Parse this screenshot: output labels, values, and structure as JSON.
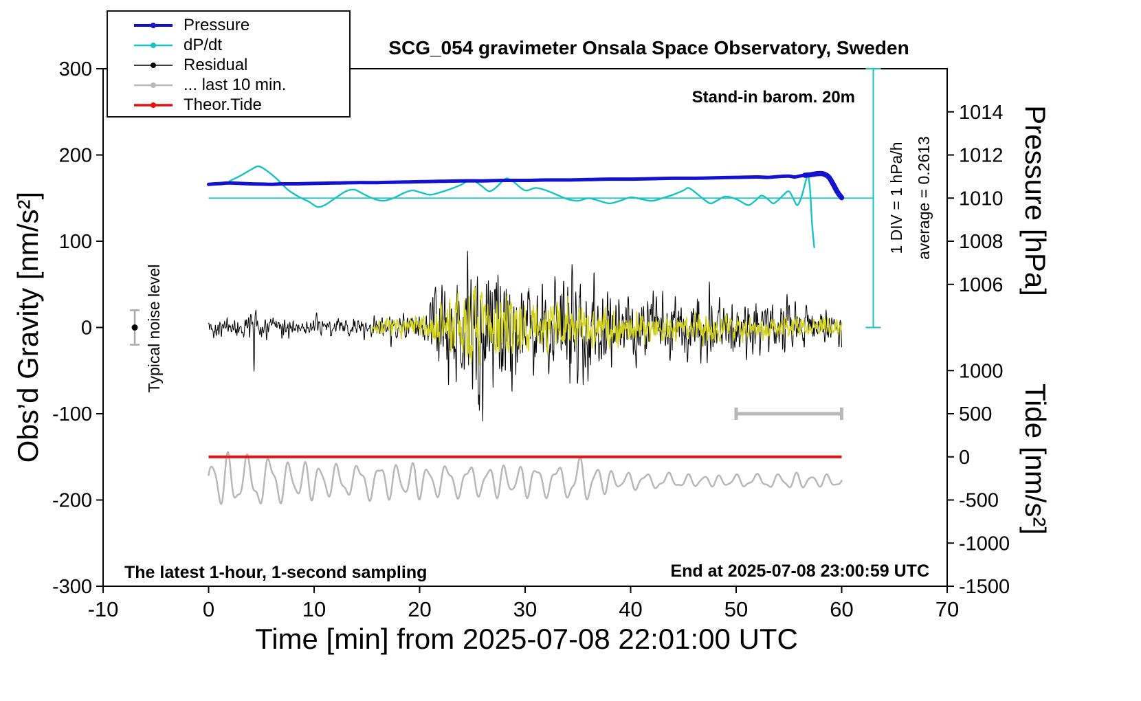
{
  "annotations": {
    "barom": "Stand-in barom. 20m",
    "div_scale": "1 DIV = 1 hPa/h",
    "average": "average = 0.2613",
    "noise": "Typical noise level",
    "sampling": "The latest 1-hour, 1-second sampling",
    "end_time": "End at 2025-07-08 23:00:59 UTC"
  },
  "legend": [
    {
      "label": "Pressure",
      "color": "#1212d0",
      "lw": 4
    },
    {
      "label": "dP/dt",
      "color": "#17c3c3",
      "lw": 2.5
    },
    {
      "label": "Residual",
      "color": "#000000",
      "lw": 1.5
    },
    {
      "label": "... last 10 min.",
      "color": "#b8b8b8",
      "lw": 2.5
    },
    {
      "label": "Theor.Tide",
      "color": "#e81010",
      "lw": 3.5
    }
  ],
  "chart_data": {
    "type": "line",
    "title": "SCG_054 gravimeter Onsala Space Observatory, Sweden",
    "x_axis": {
      "label": "Time [min] from 2025-07-08 22:01:00 UTC",
      "min": -10,
      "max": 70,
      "ticks": [
        -10,
        0,
        10,
        20,
        30,
        40,
        50,
        60,
        70
      ]
    },
    "y_left": {
      "label": "Obs’d Gravity [nm/s²]",
      "min": -300,
      "max": 300,
      "ticks": [
        -300,
        -200,
        -100,
        0,
        100,
        200,
        300
      ]
    },
    "y_right_pressure": {
      "label": "Pressure [hPa]",
      "ticks": [
        1006,
        1008,
        1010,
        1012,
        1014
      ],
      "map": {
        "ref_value": 1010,
        "ref_gravity": 150,
        "gravity_per_unit": 25
      }
    },
    "y_right_tide": {
      "label": "Tide [nm/s²]",
      "ticks": [
        -1500,
        -1000,
        -500,
        0,
        500,
        1000
      ],
      "map": {
        "ref_value": 0,
        "ref_gravity": -150,
        "gravity_per_unit": 0.1
      }
    },
    "series": {
      "pressure": {
        "name": "Pressure",
        "color": "#1212d0",
        "unit": "hPa",
        "points": [
          [
            0,
            1010.64
          ],
          [
            1,
            1010.67
          ],
          [
            2,
            1010.7
          ],
          [
            3,
            1010.68
          ],
          [
            4,
            1010.66
          ],
          [
            5,
            1010.65
          ],
          [
            6,
            1010.64
          ],
          [
            7,
            1010.66
          ],
          [
            8,
            1010.66
          ],
          [
            9,
            1010.67
          ],
          [
            10,
            1010.68
          ],
          [
            12,
            1010.7
          ],
          [
            14,
            1010.72
          ],
          [
            16,
            1010.72
          ],
          [
            18,
            1010.74
          ],
          [
            20,
            1010.76
          ],
          [
            22,
            1010.78
          ],
          [
            24,
            1010.8
          ],
          [
            26,
            1010.8
          ],
          [
            28,
            1010.82
          ],
          [
            30,
            1010.82
          ],
          [
            32,
            1010.84
          ],
          [
            34,
            1010.84
          ],
          [
            36,
            1010.86
          ],
          [
            38,
            1010.88
          ],
          [
            40,
            1010.88
          ],
          [
            42,
            1010.9
          ],
          [
            44,
            1010.92
          ],
          [
            46,
            1010.92
          ],
          [
            48,
            1010.94
          ],
          [
            50,
            1010.96
          ],
          [
            52,
            1010.98
          ],
          [
            53,
            1010.96
          ],
          [
            54,
            1011.0
          ],
          [
            55,
            1011.02
          ],
          [
            55.5,
            1010.98
          ],
          [
            56,
            1011.02
          ],
          [
            56.5,
            1011.06
          ],
          [
            57,
            1011.08
          ],
          [
            57.5,
            1011.12
          ],
          [
            58,
            1011.14
          ],
          [
            58.4,
            1011.1
          ],
          [
            58.8,
            1010.96
          ],
          [
            59.2,
            1010.64
          ],
          [
            59.6,
            1010.28
          ],
          [
            60,
            1010.02
          ]
        ]
      },
      "dpdt": {
        "name": "dP/dt",
        "color": "#17c3c3",
        "unit": "hPa/h",
        "average": 0.2613,
        "map": {
          "ref_value": 0.2613,
          "ref_gravity": 150,
          "gravity_per_unit": 100
        },
        "points": [
          [
            2,
            0.46
          ],
          [
            3,
            0.52
          ],
          [
            4,
            0.59
          ],
          [
            4.7,
            0.63
          ],
          [
            5.5,
            0.58
          ],
          [
            6.5,
            0.48
          ],
          [
            7.5,
            0.36
          ],
          [
            8.5,
            0.28
          ],
          [
            9.5,
            0.22
          ],
          [
            10.3,
            0.16
          ],
          [
            11,
            0.18
          ],
          [
            12,
            0.26
          ],
          [
            13,
            0.34
          ],
          [
            13.8,
            0.36
          ],
          [
            14.5,
            0.32
          ],
          [
            15.5,
            0.26
          ],
          [
            16.5,
            0.23
          ],
          [
            17.5,
            0.26
          ],
          [
            18.5,
            0.32
          ],
          [
            19.3,
            0.35
          ],
          [
            20,
            0.33
          ],
          [
            21,
            0.3
          ],
          [
            22,
            0.33
          ],
          [
            23,
            0.37
          ],
          [
            24,
            0.42
          ],
          [
            24.7,
            0.47
          ],
          [
            25.3,
            0.45
          ],
          [
            26,
            0.39
          ],
          [
            26.6,
            0.34
          ],
          [
            27.2,
            0.38
          ],
          [
            27.8,
            0.45
          ],
          [
            28.3,
            0.49
          ],
          [
            29,
            0.44
          ],
          [
            30,
            0.35
          ],
          [
            31,
            0.38
          ],
          [
            32,
            0.35
          ],
          [
            33,
            0.3
          ],
          [
            34,
            0.25
          ],
          [
            35,
            0.23
          ],
          [
            36,
            0.26
          ],
          [
            37,
            0.23
          ],
          [
            38,
            0.2
          ],
          [
            39,
            0.23
          ],
          [
            40,
            0.27
          ],
          [
            41,
            0.25
          ],
          [
            42,
            0.23
          ],
          [
            43,
            0.26
          ],
          [
            44,
            0.3
          ],
          [
            45,
            0.35
          ],
          [
            45.5,
            0.38
          ],
          [
            46.2,
            0.32
          ],
          [
            47,
            0.24
          ],
          [
            47.6,
            0.2
          ],
          [
            48.3,
            0.24
          ],
          [
            49,
            0.28
          ],
          [
            50,
            0.25
          ],
          [
            50.6,
            0.21
          ],
          [
            51.2,
            0.18
          ],
          [
            51.8,
            0.23
          ],
          [
            52.4,
            0.29
          ],
          [
            53,
            0.25
          ],
          [
            53.5,
            0.2
          ],
          [
            54,
            0.24
          ],
          [
            54.5,
            0.3
          ],
          [
            55,
            0.34
          ],
          [
            55.4,
            0.26
          ],
          [
            55.8,
            0.18
          ],
          [
            56.2,
            0.28
          ],
          [
            56.6,
            0.46
          ],
          [
            56.8,
            0.53
          ],
          [
            57,
            0.36
          ],
          [
            57.2,
            -0.04
          ],
          [
            57.4,
            -0.31
          ]
        ]
      },
      "residual": {
        "name": "Residual",
        "color": "#000000",
        "unit": "nm/s2",
        "envelope_per_min": [
          13,
          12,
          12,
          13,
          15,
          13,
          12,
          12,
          12,
          12,
          12,
          13,
          12,
          12,
          13,
          12,
          14,
          16,
          15,
          16,
          19,
          30,
          52,
          68,
          80,
          88,
          92,
          86,
          80,
          83,
          70,
          57,
          62,
          83,
          86,
          66,
          70,
          53,
          44,
          42,
          39,
          39,
          42,
          39,
          42,
          39,
          51,
          60,
          44,
          37,
          40,
          34,
          31,
          37,
          33,
          42,
          29,
          24,
          21,
          19,
          18
        ],
        "spikes": [
          {
            "t": 4.3,
            "amp": -40
          },
          {
            "t": 4.5,
            "amp": 30
          },
          {
            "t": 17.3,
            "amp": -22
          }
        ]
      },
      "residual_filtered": {
        "name": "Residual filtered",
        "color": "#d2d216",
        "unit": "nm/s2",
        "start_min": 15.5,
        "envelope_per_min": [
          0,
          0,
          0,
          0,
          0,
          0,
          0,
          0,
          0,
          0,
          0,
          0,
          0,
          0,
          0,
          0,
          8,
          10,
          10,
          11,
          13,
          19,
          30,
          40,
          44,
          46,
          44,
          41,
          38,
          33,
          30,
          28,
          30,
          33,
          31,
          28,
          26,
          23,
          21,
          20,
          22,
          19,
          18,
          17,
          18,
          17,
          19,
          21,
          17,
          15,
          16,
          14,
          13,
          14,
          13,
          14,
          12,
          11,
          10,
          10,
          10
        ]
      },
      "last10": {
        "name": "... last 10 min.",
        "color": "#b8b8b8",
        "unit": "tide nm/s2",
        "center": -280,
        "envelope_per_min": [
          300,
          330,
          340,
          330,
          300,
          330,
          300,
          270,
          250,
          230,
          240,
          230,
          210,
          200,
          210,
          230,
          240,
          220,
          230,
          240,
          220,
          200,
          210,
          220,
          200,
          210,
          190,
          200,
          210,
          190,
          200,
          210,
          200,
          190,
          230,
          300,
          260,
          190,
          130,
          110,
          115,
          105,
          95,
          105,
          95,
          85,
          75,
          85,
          65,
          75,
          85,
          75,
          85,
          95,
          85,
          105,
          95,
          85,
          75,
          85,
          75
        ],
        "window_bar": {
          "t1": 50,
          "t2": 60,
          "gravity": -100
        }
      },
      "theor_tide": {
        "name": "Theor.Tide",
        "color": "#e81010",
        "unit": "tide nm/s2",
        "value": 0,
        "t1": 0,
        "t2": 60
      },
      "noise_marker": {
        "t": -7,
        "value": 0,
        "error": 20
      },
      "dpdt_reference": {
        "gravity": 150,
        "t1": 0,
        "t2": 63,
        "scalebar": {
          "t": 63,
          "g1": 0,
          "g2": 300
        }
      }
    }
  }
}
